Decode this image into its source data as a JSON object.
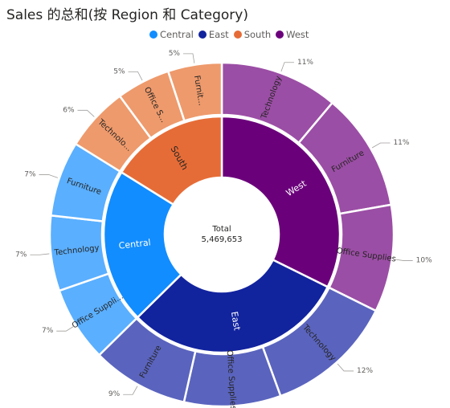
{
  "chart_data": {
    "type": "sunburst",
    "title": "Sales 的总和(按 Region 和 Category)",
    "center_label": "Total",
    "center_value": "5,469,653",
    "legend": [
      {
        "name": "Central",
        "color": "#118DFF"
      },
      {
        "name": "East",
        "color": "#12239E"
      },
      {
        "name": "South",
        "color": "#E66C37"
      },
      {
        "name": "West",
        "color": "#6B007B"
      }
    ],
    "inner": [
      {
        "name": "West",
        "value": 32,
        "color": "#6B007B",
        "label": "West"
      },
      {
        "name": "East",
        "value": 30,
        "color": "#12239E",
        "label": "East"
      },
      {
        "name": "Central",
        "value": 21,
        "color": "#118DFF",
        "label": "Central"
      },
      {
        "name": "South",
        "value": 16,
        "color": "#E66C37",
        "label": "South"
      }
    ],
    "outer": [
      {
        "region": "West",
        "label": "Technology",
        "value": 11,
        "pct": "11%",
        "color": "#9B4EA5"
      },
      {
        "region": "West",
        "label": "Furniture",
        "value": 11,
        "pct": "11%",
        "color": "#9B4EA5"
      },
      {
        "region": "West",
        "label": "Office Supplies",
        "value": 10,
        "pct": "10%",
        "color": "#9B4EA5"
      },
      {
        "region": "East",
        "label": "Technology",
        "value": 12,
        "pct": "12%",
        "color": "#5A64BE"
      },
      {
        "region": "East",
        "label": "Office Supplies",
        "value": 9,
        "pct": "",
        "color": "#5A64BE"
      },
      {
        "region": "East",
        "label": "Furniture",
        "value": 9,
        "pct": "9%",
        "color": "#5A64BE"
      },
      {
        "region": "Central",
        "label": "Office Suppli...",
        "value": 7,
        "pct": "7%",
        "color": "#5AAFFF"
      },
      {
        "region": "Central",
        "label": "Technology",
        "value": 7,
        "pct": "7%",
        "color": "#5AAFFF"
      },
      {
        "region": "Central",
        "label": "Furniture",
        "value": 7,
        "pct": "7%",
        "color": "#5AAFFF"
      },
      {
        "region": "South",
        "label": "Technolo...",
        "value": 6,
        "pct": "6%",
        "color": "#EE9A6C"
      },
      {
        "region": "South",
        "label": "Office S...",
        "value": 5,
        "pct": "5%",
        "color": "#EE9A6C"
      },
      {
        "region": "South",
        "label": "Furnit...",
        "value": 5,
        "pct": "5%",
        "color": "#EE9A6C"
      }
    ]
  }
}
